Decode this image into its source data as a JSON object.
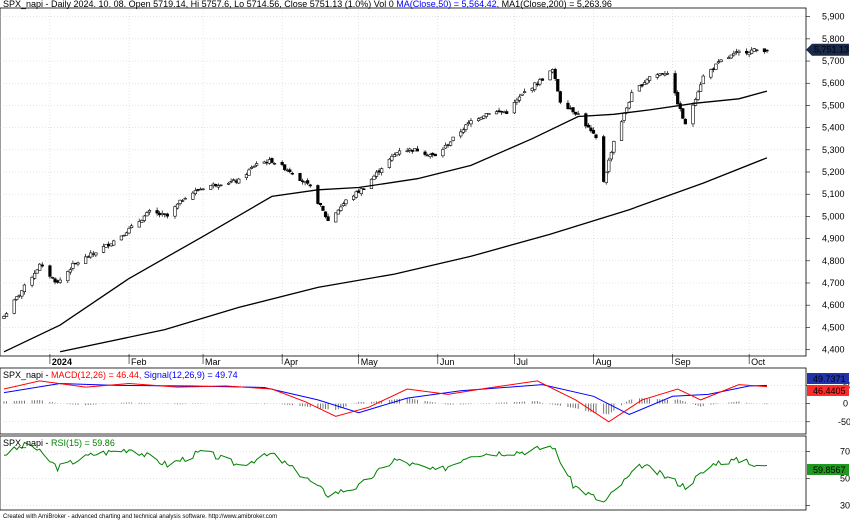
{
  "colors": {
    "price": "#000000",
    "ma50": "#000000",
    "macd": "#ff0000",
    "signal": "#0000ff",
    "histogram": "#555555",
    "rsi": "#008000",
    "label_bg": "#1a2a4a",
    "grid": "#bbbbbb"
  },
  "header": {
    "price_prefix": "SPX_napi - Daily 2024. 10. 08. Open 5719.14, Hi 5757.6, Lo 5714.56, Close 5751.13 (1.0%) Vol 0 ",
    "ma50_label": "MA(Close,50) = 5,564.42,",
    "ma200_label": " MA1(Close,200) = 5,263.96",
    "macd_prefix": "SPX_napi - ",
    "macd_label": "MACD(12,26) = 46.44,",
    "signal_label": " Signal(12,26,9) = 49.74",
    "rsi_prefix": "SPX_napi - ",
    "rsi_label": "RSI(15) = 59.86"
  },
  "footer": "Created with AmiBroker - advanced charting and technical analysis software. http://www.amibroker.com",
  "chart_data": [
    {
      "type": "candlestick",
      "x_labels": [
        "2024",
        "Feb",
        "Mar",
        "Apr",
        "May",
        "Jun",
        "Jul",
        "Aug",
        "Sep",
        "Oct"
      ],
      "y_ticks": [
        "4,400",
        "4,500",
        "4,600",
        "4,700",
        "4,800",
        "4,900",
        "5,000",
        "5,100",
        "5,200",
        "5,300",
        "5,400",
        "5,500",
        "5,600",
        "5,700",
        "5,800",
        "5,900"
      ],
      "ylim": [
        4380,
        5930
      ],
      "last_label": "5,751.13",
      "close_series": [
        {
          "date": "2023-12-14",
          "close": 4550
        },
        {
          "date": "2023-12-20",
          "close": 4650
        },
        {
          "date": "2023-12-28",
          "close": 4780
        },
        {
          "date": "2024-01-04",
          "close": 4700
        },
        {
          "date": "2024-01-10",
          "close": 4780
        },
        {
          "date": "2024-01-19",
          "close": 4840
        },
        {
          "date": "2024-01-26",
          "close": 4890
        },
        {
          "date": "2024-02-02",
          "close": 4950
        },
        {
          "date": "2024-02-09",
          "close": 5020
        },
        {
          "date": "2024-02-16",
          "close": 5000
        },
        {
          "date": "2024-02-23",
          "close": 5090
        },
        {
          "date": "2024-03-01",
          "close": 5130
        },
        {
          "date": "2024-03-08",
          "close": 5150
        },
        {
          "date": "2024-03-15",
          "close": 5160
        },
        {
          "date": "2024-03-22",
          "close": 5240
        },
        {
          "date": "2024-03-28",
          "close": 5250
        },
        {
          "date": "2024-04-05",
          "close": 5200
        },
        {
          "date": "2024-04-12",
          "close": 5130
        },
        {
          "date": "2024-04-19",
          "close": 4980
        },
        {
          "date": "2024-04-26",
          "close": 5070
        },
        {
          "date": "2024-05-03",
          "close": 5130
        },
        {
          "date": "2024-05-10",
          "close": 5220
        },
        {
          "date": "2024-05-17",
          "close": 5300
        },
        {
          "date": "2024-05-24",
          "close": 5300
        },
        {
          "date": "2024-05-31",
          "close": 5270
        },
        {
          "date": "2024-06-07",
          "close": 5350
        },
        {
          "date": "2024-06-14",
          "close": 5430
        },
        {
          "date": "2024-06-21",
          "close": 5470
        },
        {
          "date": "2024-06-28",
          "close": 5470
        },
        {
          "date": "2024-07-05",
          "close": 5560
        },
        {
          "date": "2024-07-12",
          "close": 5620
        },
        {
          "date": "2024-07-16",
          "close": 5660
        },
        {
          "date": "2024-07-19",
          "close": 5520
        },
        {
          "date": "2024-07-26",
          "close": 5460
        },
        {
          "date": "2024-08-02",
          "close": 5350
        },
        {
          "date": "2024-08-05",
          "close": 5160
        },
        {
          "date": "2024-08-09",
          "close": 5340
        },
        {
          "date": "2024-08-16",
          "close": 5550
        },
        {
          "date": "2024-08-23",
          "close": 5630
        },
        {
          "date": "2024-08-30",
          "close": 5650
        },
        {
          "date": "2024-09-06",
          "close": 5410
        },
        {
          "date": "2024-09-13",
          "close": 5630
        },
        {
          "date": "2024-09-20",
          "close": 5700
        },
        {
          "date": "2024-09-27",
          "close": 5740
        },
        {
          "date": "2024-10-04",
          "close": 5750
        },
        {
          "date": "2024-10-08",
          "close": 5751
        }
      ],
      "ma50_series": [
        {
          "date": "2023-12-14",
          "value": 4390
        },
        {
          "date": "2024-01-05",
          "value": 4510
        },
        {
          "date": "2024-02-01",
          "value": 4720
        },
        {
          "date": "2024-03-01",
          "value": 4910
        },
        {
          "date": "2024-03-28",
          "value": 5090
        },
        {
          "date": "2024-04-15",
          "value": 5120
        },
        {
          "date": "2024-05-01",
          "value": 5130
        },
        {
          "date": "2024-05-24",
          "value": 5170
        },
        {
          "date": "2024-06-14",
          "value": 5230
        },
        {
          "date": "2024-07-08",
          "value": 5350
        },
        {
          "date": "2024-07-26",
          "value": 5450
        },
        {
          "date": "2024-08-09",
          "value": 5460
        },
        {
          "date": "2024-08-23",
          "value": 5480
        },
        {
          "date": "2024-09-10",
          "value": 5510
        },
        {
          "date": "2024-09-27",
          "value": 5530
        },
        {
          "date": "2024-10-08",
          "value": 5564.42
        }
      ],
      "ma200_series": [
        {
          "date": "2024-01-05",
          "value": 4390
        },
        {
          "date": "2024-02-15",
          "value": 4490
        },
        {
          "date": "2024-03-15",
          "value": 4590
        },
        {
          "date": "2024-04-15",
          "value": 4680
        },
        {
          "date": "2024-05-15",
          "value": 4740
        },
        {
          "date": "2024-06-14",
          "value": 4820
        },
        {
          "date": "2024-07-15",
          "value": 4920
        },
        {
          "date": "2024-08-15",
          "value": 5030
        },
        {
          "date": "2024-09-13",
          "value": 5150
        },
        {
          "date": "2024-10-08",
          "value": 5263.96
        }
      ]
    },
    {
      "type": "line",
      "y_ticks": [
        "50",
        "0",
        "-50"
      ],
      "ylim": [
        -78,
        92
      ],
      "labels": {
        "signal_value": "49.7371",
        "macd_value": "46.4405"
      },
      "macd_series": [
        {
          "date": "2023-12-14",
          "value": 40
        },
        {
          "date": "2023-12-28",
          "value": 62
        },
        {
          "date": "2024-01-15",
          "value": 45
        },
        {
          "date": "2024-02-01",
          "value": 55
        },
        {
          "date": "2024-02-20",
          "value": 45
        },
        {
          "date": "2024-03-10",
          "value": 48
        },
        {
          "date": "2024-03-28",
          "value": 40
        },
        {
          "date": "2024-04-10",
          "value": 5
        },
        {
          "date": "2024-04-22",
          "value": -35
        },
        {
          "date": "2024-05-05",
          "value": -10
        },
        {
          "date": "2024-05-20",
          "value": 40
        },
        {
          "date": "2024-06-05",
          "value": 25
        },
        {
          "date": "2024-06-20",
          "value": 42
        },
        {
          "date": "2024-07-10",
          "value": 62
        },
        {
          "date": "2024-07-25",
          "value": 10
        },
        {
          "date": "2024-08-07",
          "value": -50
        },
        {
          "date": "2024-08-20",
          "value": 10
        },
        {
          "date": "2024-09-03",
          "value": 40
        },
        {
          "date": "2024-09-12",
          "value": 10
        },
        {
          "date": "2024-09-27",
          "value": 52
        },
        {
          "date": "2024-10-08",
          "value": 46.44
        }
      ],
      "signal_series": [
        {
          "date": "2023-12-14",
          "value": 30
        },
        {
          "date": "2024-01-05",
          "value": 55
        },
        {
          "date": "2024-01-25",
          "value": 50
        },
        {
          "date": "2024-02-25",
          "value": 48
        },
        {
          "date": "2024-03-25",
          "value": 44
        },
        {
          "date": "2024-04-15",
          "value": 10
        },
        {
          "date": "2024-05-01",
          "value": -25
        },
        {
          "date": "2024-05-20",
          "value": 15
        },
        {
          "date": "2024-06-10",
          "value": 35
        },
        {
          "date": "2024-07-12",
          "value": 52
        },
        {
          "date": "2024-08-01",
          "value": 20
        },
        {
          "date": "2024-08-15",
          "value": -30
        },
        {
          "date": "2024-09-01",
          "value": 20
        },
        {
          "date": "2024-09-15",
          "value": 25
        },
        {
          "date": "2024-10-01",
          "value": 48
        },
        {
          "date": "2024-10-08",
          "value": 49.74
        }
      ]
    },
    {
      "type": "line",
      "y_ticks": [
        "70",
        "50",
        "30"
      ],
      "ylim": [
        28,
        80
      ],
      "labels": {
        "rsi_value": "59.8567"
      },
      "rsi_series": [
        {
          "date": "2023-12-14",
          "value": 68
        },
        {
          "date": "2023-12-24",
          "value": 76
        },
        {
          "date": "2024-01-04",
          "value": 58
        },
        {
          "date": "2024-01-18",
          "value": 68
        },
        {
          "date": "2024-02-02",
          "value": 72
        },
        {
          "date": "2024-02-16",
          "value": 60
        },
        {
          "date": "2024-03-01",
          "value": 70
        },
        {
          "date": "2024-03-15",
          "value": 60
        },
        {
          "date": "2024-03-28",
          "value": 68
        },
        {
          "date": "2024-04-12",
          "value": 48
        },
        {
          "date": "2024-04-19",
          "value": 38
        },
        {
          "date": "2024-05-01",
          "value": 44
        },
        {
          "date": "2024-05-15",
          "value": 64
        },
        {
          "date": "2024-06-01",
          "value": 55
        },
        {
          "date": "2024-06-14",
          "value": 68
        },
        {
          "date": "2024-07-05",
          "value": 70
        },
        {
          "date": "2024-07-16",
          "value": 74
        },
        {
          "date": "2024-07-24",
          "value": 45
        },
        {
          "date": "2024-08-05",
          "value": 32
        },
        {
          "date": "2024-08-12",
          "value": 46
        },
        {
          "date": "2024-08-20",
          "value": 60
        },
        {
          "date": "2024-09-06",
          "value": 44
        },
        {
          "date": "2024-09-18",
          "value": 62
        },
        {
          "date": "2024-09-30",
          "value": 64
        },
        {
          "date": "2024-10-04",
          "value": 58
        },
        {
          "date": "2024-10-08",
          "value": 59.86
        }
      ]
    }
  ]
}
